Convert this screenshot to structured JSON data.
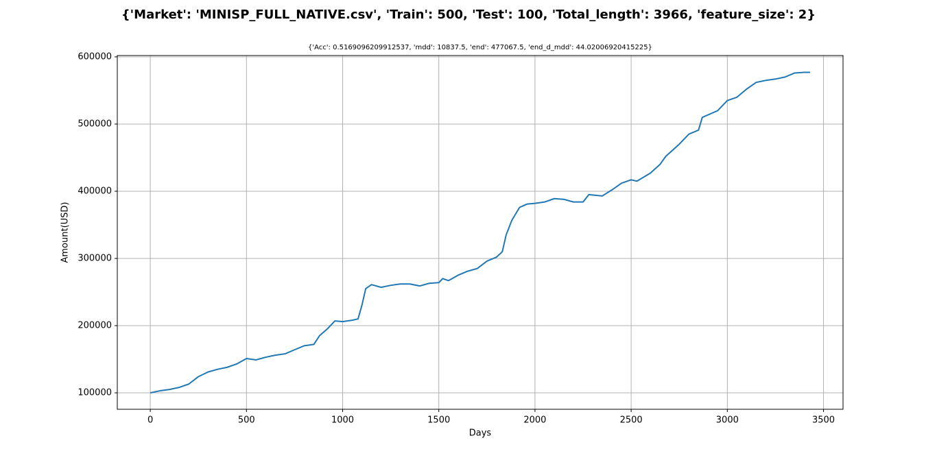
{
  "chart_data": {
    "type": "line",
    "title": "{'Market': 'MINISP_FULL_NATIVE.csv', 'Train': 500, 'Test': 100, 'Total_length': 3966, 'feature_size': 2}",
    "subtitle": "{'Acc': 0.5169096209912537, 'mdd': 10837.5, 'end': 477067.5, 'end_d_mdd': 44.02006920415225}",
    "xlabel": "Days",
    "ylabel": "Amount(USD)",
    "color": "#1f77b4",
    "grid": true,
    "xlim": [
      -171.5,
      3601.5
    ],
    "xticks": [
      0,
      500,
      1000,
      1500,
      2000,
      2500,
      3000,
      3500
    ],
    "ylim": [
      75500,
      602000
    ],
    "yticks": [
      100000,
      200000,
      300000,
      400000,
      500000,
      600000
    ],
    "x": [
      0,
      50,
      100,
      150,
      200,
      250,
      300,
      350,
      400,
      450,
      500,
      550,
      600,
      650,
      700,
      750,
      800,
      850,
      880,
      920,
      960,
      1000,
      1050,
      1080,
      1100,
      1120,
      1150,
      1200,
      1250,
      1300,
      1350,
      1400,
      1450,
      1500,
      1520,
      1550,
      1600,
      1650,
      1700,
      1750,
      1800,
      1830,
      1850,
      1880,
      1920,
      1960,
      2000,
      2050,
      2100,
      2150,
      2200,
      2250,
      2280,
      2350,
      2400,
      2450,
      2500,
      2530,
      2600,
      2650,
      2680,
      2750,
      2800,
      2850,
      2870,
      2950,
      3000,
      3050,
      3100,
      3150,
      3200,
      3250,
      3300,
      3350,
      3400,
      3430
    ],
    "values": [
      100000,
      103000,
      105000,
      108000,
      113000,
      124000,
      131000,
      135000,
      138000,
      143000,
      151000,
      149000,
      153000,
      156000,
      158000,
      164000,
      170000,
      172000,
      185000,
      195000,
      207000,
      206000,
      208000,
      210000,
      230000,
      255000,
      261000,
      257000,
      260000,
      262000,
      262000,
      259000,
      263000,
      264000,
      270000,
      267000,
      275000,
      281000,
      285000,
      296000,
      302000,
      310000,
      335000,
      357000,
      376000,
      381000,
      382000,
      384000,
      389000,
      388000,
      384000,
      384000,
      395000,
      393000,
      402000,
      412000,
      417000,
      415000,
      427000,
      440000,
      452000,
      470000,
      485000,
      491000,
      510000,
      520000,
      535000,
      540000,
      552000,
      562000,
      565000,
      567000,
      570000,
      576000,
      577000,
      577000
    ]
  }
}
